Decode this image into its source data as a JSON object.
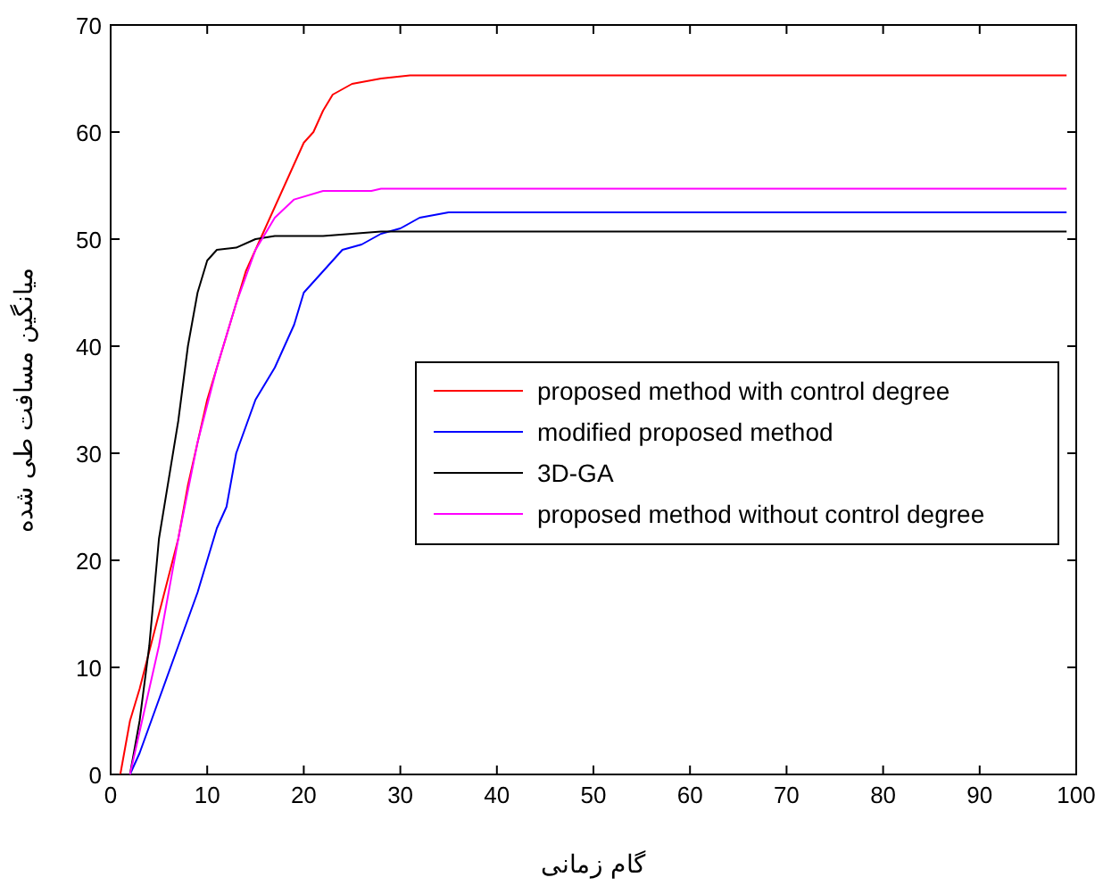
{
  "chart_data": {
    "type": "line",
    "xlabel": "گام زمانی",
    "ylabel": "میانگین مسافت طی شده",
    "xlim": [
      0,
      100
    ],
    "ylim": [
      0,
      70
    ],
    "xticks": [
      0,
      10,
      20,
      30,
      40,
      50,
      60,
      70,
      80,
      90,
      100
    ],
    "yticks": [
      0,
      10,
      20,
      30,
      40,
      50,
      60,
      70
    ],
    "grid": false,
    "legend": "right",
    "line_style": "solid",
    "series": [
      {
        "name": "proposed method with control degree",
        "color": "#ff0000",
        "x": [
          1,
          2,
          3,
          5,
          7,
          8,
          10,
          12,
          14,
          16,
          18,
          20,
          21,
          22,
          23,
          25,
          28,
          31,
          99
        ],
        "values": [
          0,
          5,
          8,
          15,
          22,
          27,
          35,
          41,
          47,
          51,
          55,
          59,
          60,
          62,
          63.5,
          64.5,
          65,
          65.3,
          65.3
        ]
      },
      {
        "name": "modified proposed method",
        "color": "#0000ff",
        "x": [
          2,
          3,
          5,
          7,
          9,
          11,
          12,
          13,
          15,
          17,
          19,
          20,
          22,
          24,
          26,
          28,
          30,
          32,
          35,
          99
        ],
        "values": [
          0,
          2,
          7,
          12,
          17,
          23,
          25,
          30,
          35,
          38,
          42,
          45,
          47,
          49,
          49.5,
          50.5,
          51,
          52,
          52.5,
          52.5
        ]
      },
      {
        "name": "3D-GA",
        "color": "#000000",
        "x": [
          1,
          2,
          3,
          4,
          5,
          7,
          8,
          9,
          10,
          11,
          13,
          15,
          17,
          22,
          25,
          28,
          99
        ],
        "values": [
          0,
          0,
          5,
          12,
          22,
          33,
          40,
          45,
          48,
          49,
          49.2,
          50,
          50.3,
          50.3,
          50.5,
          50.7,
          50.7
        ]
      },
      {
        "name": "proposed method without control degree",
        "color": "#ff00ff",
        "x": [
          2,
          3,
          5,
          7,
          9,
          11,
          13,
          15,
          17,
          19,
          22,
          27,
          28,
          99
        ],
        "values": [
          0,
          4,
          12,
          22,
          31,
          38,
          44,
          49,
          52,
          53.7,
          54.5,
          54.5,
          54.7,
          54.7
        ]
      }
    ]
  }
}
